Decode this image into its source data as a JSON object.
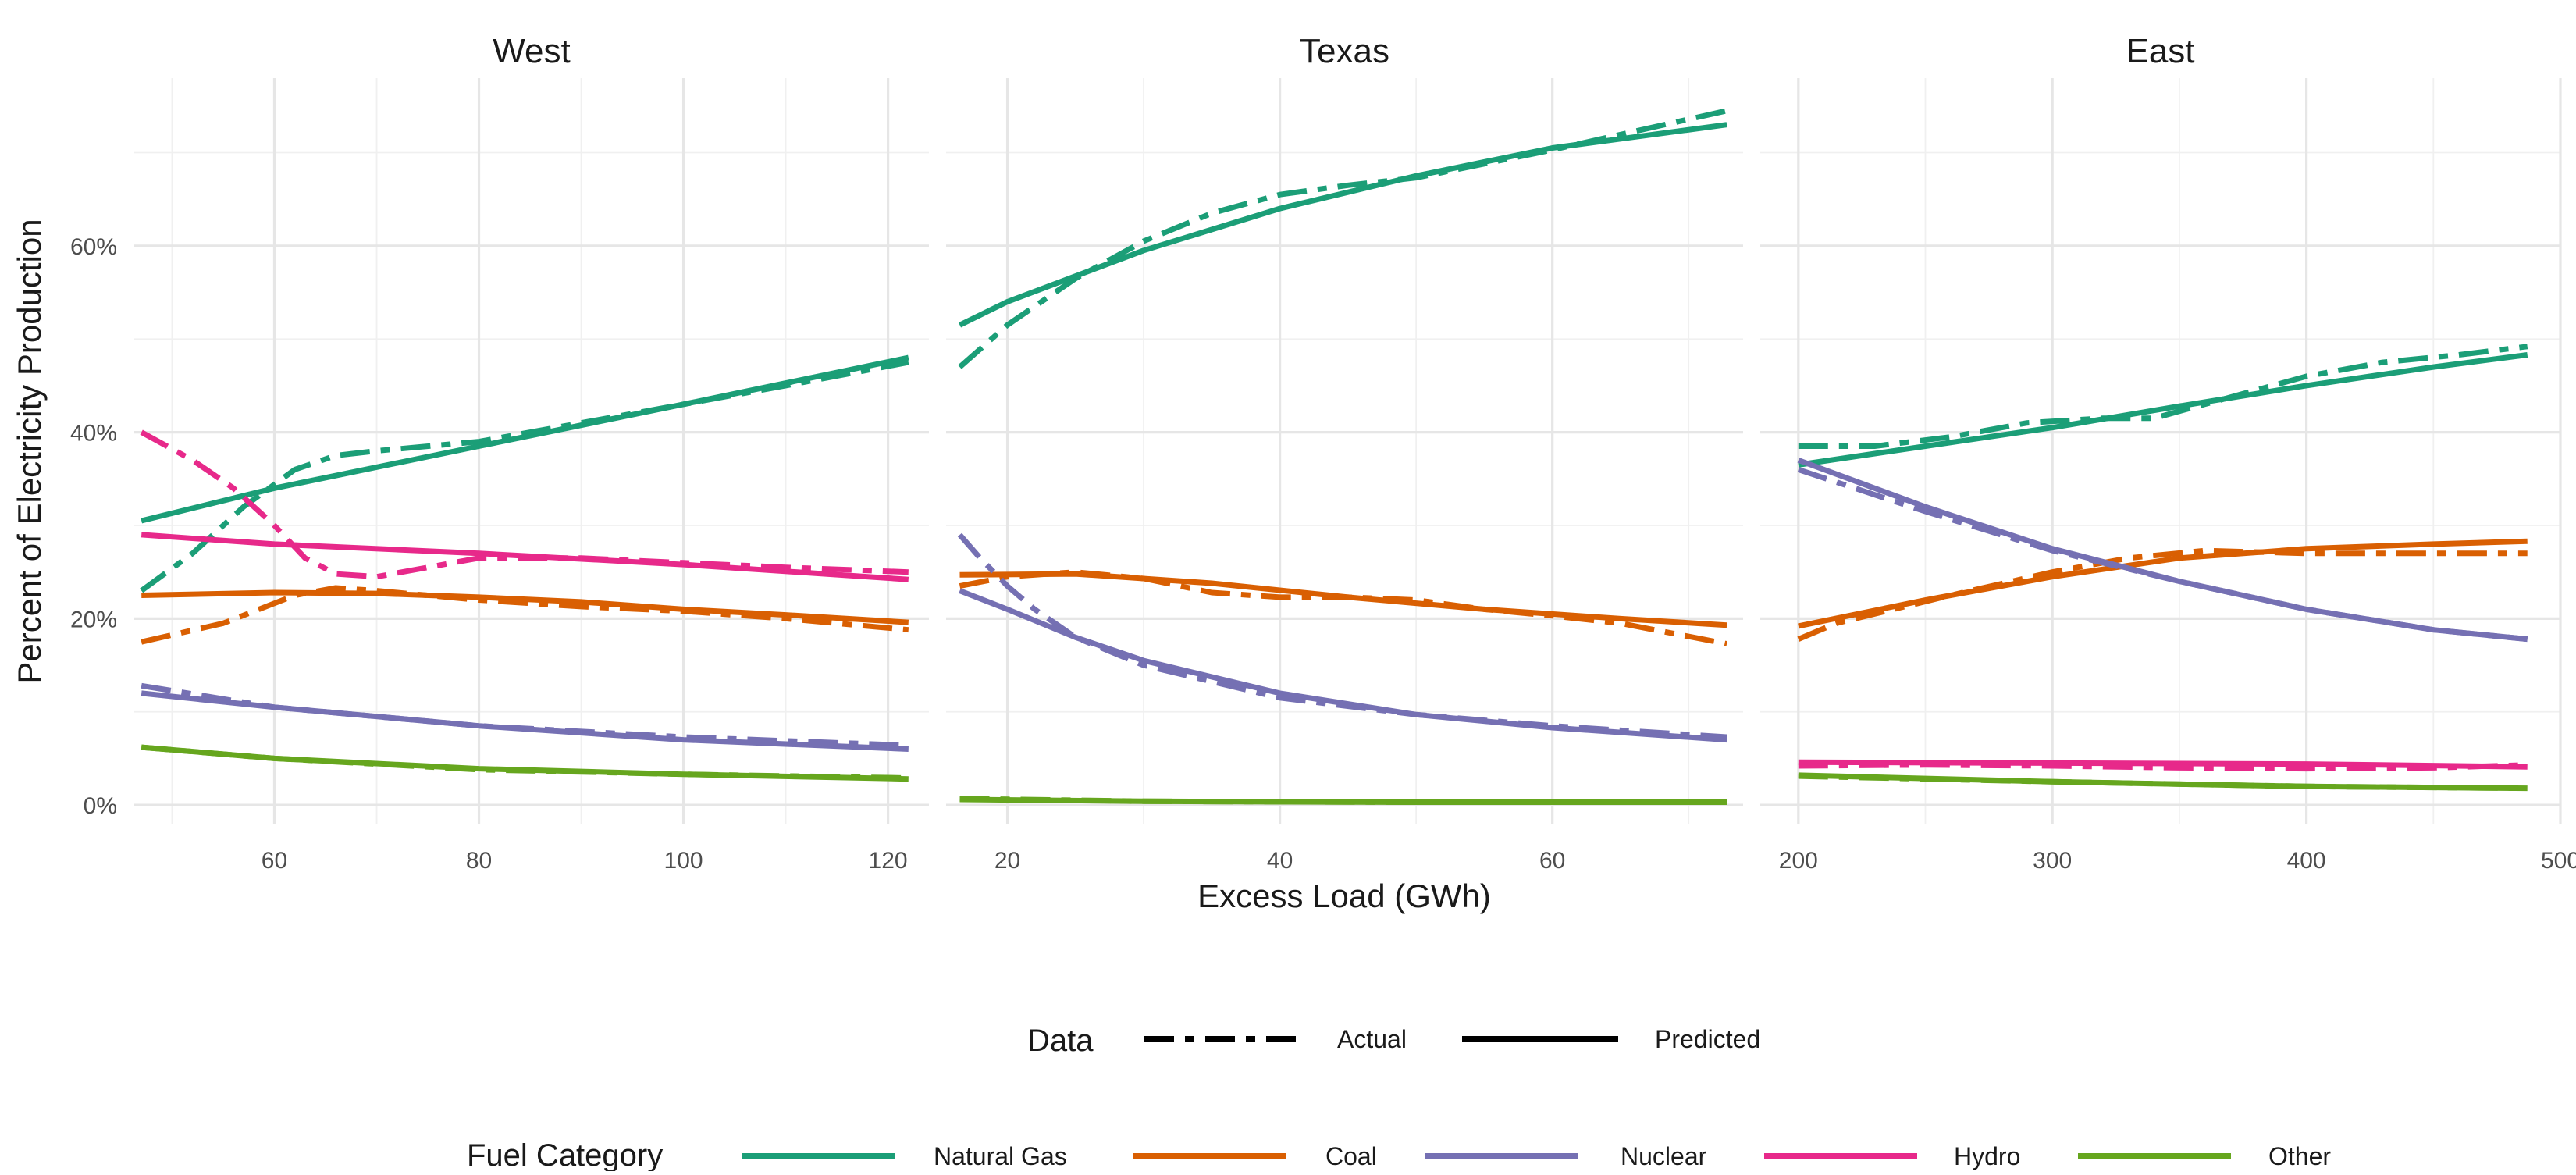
{
  "chart_data": {
    "type": "line",
    "xlabel": "Excess Load (GWh)",
    "ylabel": "Percent of Electricity Production",
    "y_ticks": [
      "0%",
      "20%",
      "40%",
      "60%"
    ],
    "y_tick_values": [
      0,
      20,
      40,
      60
    ],
    "ylim": [
      -2,
      78
    ],
    "legend_position": "bottom",
    "linetype_legend": {
      "title": "Data",
      "entries": [
        {
          "label": "Actual",
          "dash": "dashed"
        },
        {
          "label": "Predicted",
          "dash": "solid"
        }
      ]
    },
    "color_legend": {
      "title": "Fuel Category",
      "entries": [
        {
          "label": "Natural Gas",
          "color": "#1b9e77"
        },
        {
          "label": "Coal",
          "color": "#d95f02"
        },
        {
          "label": "Nuclear",
          "color": "#7570b3"
        },
        {
          "label": "Hydro",
          "color": "#e7298a"
        },
        {
          "label": "Other",
          "color": "#66a61e"
        }
      ]
    },
    "panels": [
      {
        "title": "West",
        "xlim": [
          46.3,
          124.0
        ],
        "x_ticks": [
          60,
          80,
          100,
          120
        ],
        "x_minor": [
          50,
          70,
          90,
          110
        ],
        "series": [
          {
            "fuel": "Natural Gas",
            "data": "Predicted",
            "x": [
              47,
              60,
              80,
              100,
              122
            ],
            "y": [
              30.5,
              34.0,
              38.5,
              43.0,
              48.0
            ]
          },
          {
            "fuel": "Natural Gas",
            "data": "Actual",
            "x": [
              47,
              52,
              57,
              62,
              66,
              70,
              80,
              90,
              100,
              110,
              122
            ],
            "y": [
              23.0,
              27.0,
              32.0,
              36.0,
              37.5,
              38.0,
              39.0,
              41.0,
              43.0,
              45.0,
              47.5
            ]
          },
          {
            "fuel": "Coal",
            "data": "Predicted",
            "x": [
              47,
              60,
              70,
              80,
              90,
              100,
              110,
              122
            ],
            "y": [
              22.5,
              22.8,
              22.7,
              22.3,
              21.8,
              21.0,
              20.4,
              19.6
            ]
          },
          {
            "fuel": "Coal",
            "data": "Actual",
            "x": [
              47,
              55,
              62,
              66,
              70,
              80,
              90,
              100,
              110,
              122
            ],
            "y": [
              17.5,
              19.5,
              22.5,
              23.3,
              23.0,
              22.0,
              21.3,
              20.8,
              20.0,
              18.8
            ]
          },
          {
            "fuel": "Nuclear",
            "data": "Predicted",
            "x": [
              47,
              60,
              80,
              100,
              122
            ],
            "y": [
              12.0,
              10.5,
              8.5,
              7.0,
              6.0
            ]
          },
          {
            "fuel": "Nuclear",
            "data": "Actual",
            "x": [
              47,
              60,
              80,
              100,
              122
            ],
            "y": [
              12.8,
              10.5,
              8.5,
              7.3,
              6.4
            ]
          },
          {
            "fuel": "Hydro",
            "data": "Predicted",
            "x": [
              47,
              60,
              80,
              100,
              122
            ],
            "y": [
              29.0,
              28.0,
              27.0,
              25.8,
              24.2
            ]
          },
          {
            "fuel": "Hydro",
            "data": "Actual",
            "x": [
              47,
              52,
              56,
              60,
              63,
              66,
              70,
              75,
              80,
              90,
              100,
              110,
              122
            ],
            "y": [
              40.0,
              37.0,
              34.0,
              30.0,
              26.5,
              24.8,
              24.5,
              25.5,
              26.5,
              26.5,
              26.0,
              25.5,
              25.0
            ]
          },
          {
            "fuel": "Other",
            "data": "Predicted",
            "x": [
              47,
              60,
              80,
              100,
              122
            ],
            "y": [
              6.2,
              5.0,
              3.9,
              3.3,
              2.8
            ]
          },
          {
            "fuel": "Other",
            "data": "Actual",
            "x": [
              47,
              60,
              80,
              100,
              122
            ],
            "y": [
              6.2,
              5.0,
              3.8,
              3.3,
              2.9
            ]
          }
        ]
      },
      {
        "title": "Texas",
        "xlim": [
          15.5,
          74.0
        ],
        "x_ticks": [
          20,
          40,
          60
        ],
        "x_minor": [
          30,
          50,
          70
        ],
        "series": [
          {
            "fuel": "Natural Gas",
            "data": "Predicted",
            "x": [
              16.5,
              20,
              30,
              40,
              50,
              60,
              72.8
            ],
            "y": [
              51.5,
              54.0,
              59.5,
              64.0,
              67.5,
              70.5,
              73.0
            ]
          },
          {
            "fuel": "Natural Gas",
            "data": "Actual",
            "x": [
              16.5,
              20,
              25,
              30,
              35,
              40,
              45,
              50,
              60,
              72.8
            ],
            "y": [
              47.0,
              51.5,
              56.5,
              60.5,
              63.5,
              65.5,
              66.5,
              67.3,
              70.3,
              74.5
            ]
          },
          {
            "fuel": "Coal",
            "data": "Predicted",
            "x": [
              16.5,
              25,
              35,
              45,
              55,
              65,
              72.8
            ],
            "y": [
              24.7,
              24.8,
              23.8,
              22.3,
              21.0,
              20.0,
              19.3
            ]
          },
          {
            "fuel": "Coal",
            "data": "Actual",
            "x": [
              16.5,
              20,
              25,
              30,
              35,
              40,
              45,
              50,
              55,
              60,
              65,
              72.8
            ],
            "y": [
              23.5,
              24.5,
              25.0,
              24.3,
              22.8,
              22.3,
              22.3,
              22.0,
              21.0,
              20.3,
              19.5,
              17.3
            ]
          },
          {
            "fuel": "Nuclear",
            "data": "Predicted",
            "x": [
              16.5,
              20,
              25,
              30,
              40,
              50,
              60,
              72.8
            ],
            "y": [
              23.0,
              21.0,
              18.0,
              15.5,
              12.0,
              9.7,
              8.3,
              7.0
            ]
          },
          {
            "fuel": "Nuclear",
            "data": "Actual",
            "x": [
              16.5,
              18,
              20,
              22,
              25,
              30,
              40,
              50,
              60,
              72.8
            ],
            "y": [
              29.0,
              26.5,
              23.5,
              21.0,
              18.0,
              15.0,
              11.5,
              9.7,
              8.5,
              7.3
            ]
          },
          {
            "fuel": "Other",
            "data": "Predicted",
            "x": [
              16.5,
              30,
              50,
              72.8
            ],
            "y": [
              0.6,
              0.4,
              0.3,
              0.3
            ]
          },
          {
            "fuel": "Other",
            "data": "Actual",
            "x": [
              16.5,
              30,
              50,
              72.8
            ],
            "y": [
              0.7,
              0.4,
              0.3,
              0.3
            ]
          }
        ]
      },
      {
        "title": "East",
        "xlim": [
          185.0,
          500.0
        ],
        "x_ticks": [
          200,
          300,
          400,
          500
        ],
        "x_minor": [
          250,
          350,
          450
        ],
        "series": [
          {
            "fuel": "Natural Gas",
            "data": "Predicted",
            "x": [
              200,
              250,
              300,
              350,
              400,
              450,
              487
            ],
            "y": [
              36.5,
              38.5,
              40.5,
              42.8,
              45.0,
              47.0,
              48.3
            ]
          },
          {
            "fuel": "Natural Gas",
            "data": "Actual",
            "x": [
              200,
              230,
              260,
              290,
              320,
              340,
              360,
              380,
              400,
              430,
              460,
              487
            ],
            "y": [
              38.5,
              38.5,
              39.5,
              41.0,
              41.5,
              41.5,
              43.0,
              44.5,
              46.0,
              47.5,
              48.3,
              49.2
            ]
          },
          {
            "fuel": "Coal",
            "data": "Predicted",
            "x": [
              200,
              250,
              300,
              350,
              400,
              450,
              487
            ],
            "y": [
              19.2,
              22.0,
              24.5,
              26.5,
              27.5,
              28.0,
              28.3
            ]
          },
          {
            "fuel": "Coal",
            "data": "Actual",
            "x": [
              200,
              215,
              230,
              260,
              300,
              330,
              360,
              400,
              440,
              487
            ],
            "y": [
              17.8,
              19.5,
              20.5,
              22.5,
              25.0,
              26.5,
              27.3,
              27.0,
              27.0,
              27.0
            ]
          },
          {
            "fuel": "Nuclear",
            "data": "Predicted",
            "x": [
              200,
              250,
              300,
              350,
              400,
              450,
              487
            ],
            "y": [
              37.0,
              32.0,
              27.5,
              24.0,
              21.0,
              18.8,
              17.8
            ]
          },
          {
            "fuel": "Nuclear",
            "data": "Actual",
            "x": [
              200,
              250,
              300,
              350,
              400,
              450,
              487
            ],
            "y": [
              36.0,
              31.5,
              27.3,
              24.0,
              21.0,
              18.8,
              17.8
            ]
          },
          {
            "fuel": "Hydro",
            "data": "Predicted",
            "x": [
              200,
              300,
              400,
              487
            ],
            "y": [
              4.6,
              4.5,
              4.4,
              4.1
            ]
          },
          {
            "fuel": "Hydro",
            "data": "Actual",
            "x": [
              200,
              250,
              300,
              350,
              400,
              450,
              487
            ],
            "y": [
              4.2,
              4.3,
              4.2,
              4.0,
              3.9,
              4.0,
              4.3
            ]
          },
          {
            "fuel": "Other",
            "data": "Predicted",
            "x": [
              200,
              300,
              400,
              487
            ],
            "y": [
              3.2,
              2.5,
              2.0,
              1.8
            ]
          },
          {
            "fuel": "Other",
            "data": "Actual",
            "x": [
              200,
              300,
              400,
              487
            ],
            "y": [
              3.1,
              2.5,
              2.0,
              1.8
            ]
          }
        ]
      }
    ]
  }
}
